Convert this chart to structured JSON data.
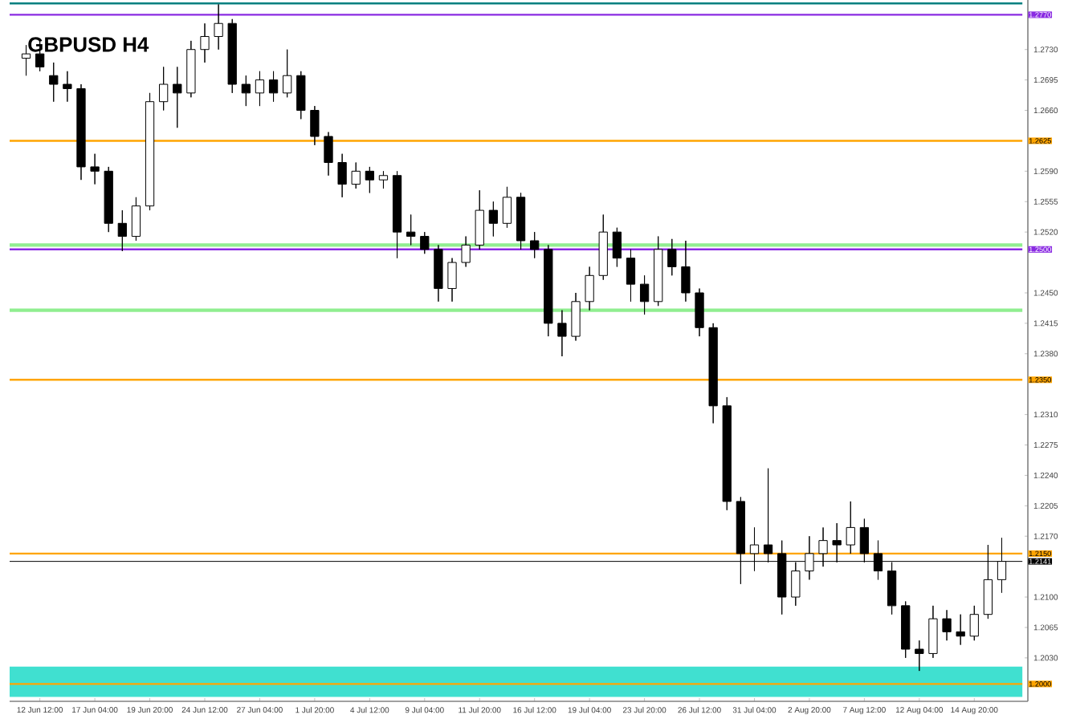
{
  "chart_data": {
    "type": "candlestick",
    "title": "GBPUSD H4",
    "color": "#000000",
    "categories": [
      null,
      "12 Jun 12:00",
      null,
      null,
      null,
      "17 Jun 04:00",
      null,
      null,
      null,
      "19 Jun 20:00",
      null,
      null,
      null,
      "24 Jun 12:00",
      null,
      null,
      null,
      "27 Jun 04:00",
      null,
      null,
      null,
      "1 Jul 20:00",
      null,
      null,
      null,
      "4 Jul 12:00",
      null,
      null,
      null,
      "9 Jul 04:00",
      null,
      null,
      null,
      "11 Jul 20:00",
      null,
      null,
      null,
      "16 Jul 12:00",
      null,
      null,
      null,
      "19 Jul 04:00",
      null,
      null,
      null,
      "23 Jul 20:00",
      null,
      null,
      null,
      "26 Jul 12:00",
      null,
      null,
      null,
      "31 Jul 04:00",
      null,
      null,
      null,
      "2 Aug 20:00",
      null,
      null,
      null,
      "7 Aug 12:00",
      null,
      null,
      null,
      "12 Aug 04:00",
      null,
      null,
      null,
      "14 Aug 20:00",
      null,
      null
    ],
    "ohlc": [
      [
        1.272,
        1.2735,
        1.27,
        1.2725
      ],
      [
        1.2725,
        1.274,
        1.2705,
        1.271
      ],
      [
        1.27,
        1.2715,
        1.267,
        1.269
      ],
      [
        1.269,
        1.2705,
        1.267,
        1.2685
      ],
      [
        1.2685,
        1.269,
        1.258,
        1.2595
      ],
      [
        1.2595,
        1.261,
        1.2575,
        1.259
      ],
      [
        1.259,
        1.2595,
        1.252,
        1.253
      ],
      [
        1.253,
        1.2545,
        1.2498,
        1.2515
      ],
      [
        1.2515,
        1.256,
        1.251,
        1.255
      ],
      [
        1.255,
        1.268,
        1.2545,
        1.267
      ],
      [
        1.267,
        1.271,
        1.266,
        1.269
      ],
      [
        1.269,
        1.271,
        1.264,
        1.268
      ],
      [
        1.268,
        1.274,
        1.2675,
        1.273
      ],
      [
        1.273,
        1.276,
        1.2715,
        1.2745
      ],
      [
        1.2745,
        1.2782,
        1.273,
        1.276
      ],
      [
        1.276,
        1.2765,
        1.268,
        1.269
      ],
      [
        1.269,
        1.27,
        1.2665,
        1.268
      ],
      [
        1.268,
        1.2705,
        1.2665,
        1.2695
      ],
      [
        1.2695,
        1.2705,
        1.267,
        1.268
      ],
      [
        1.268,
        1.273,
        1.2675,
        1.27
      ],
      [
        1.27,
        1.2705,
        1.265,
        1.266
      ],
      [
        1.266,
        1.2665,
        1.262,
        1.263
      ],
      [
        1.263,
        1.2635,
        1.2585,
        1.26
      ],
      [
        1.26,
        1.261,
        1.256,
        1.2575
      ],
      [
        1.2575,
        1.26,
        1.257,
        1.259
      ],
      [
        1.259,
        1.2595,
        1.2565,
        1.258
      ],
      [
        1.258,
        1.259,
        1.257,
        1.2585
      ],
      [
        1.2585,
        1.259,
        1.249,
        1.252
      ],
      [
        1.252,
        1.254,
        1.2505,
        1.2515
      ],
      [
        1.2515,
        1.252,
        1.2495,
        1.25
      ],
      [
        1.25,
        1.2505,
        1.244,
        1.2455
      ],
      [
        1.2455,
        1.249,
        1.244,
        1.2485
      ],
      [
        1.2485,
        1.2515,
        1.248,
        1.2505
      ],
      [
        1.2505,
        1.2568,
        1.25,
        1.2545
      ],
      [
        1.2545,
        1.2555,
        1.2515,
        1.253
      ],
      [
        1.253,
        1.2572,
        1.2525,
        1.256
      ],
      [
        1.256,
        1.2565,
        1.25,
        1.251
      ],
      [
        1.251,
        1.252,
        1.249,
        1.25
      ],
      [
        1.25,
        1.2505,
        1.24,
        1.2415
      ],
      [
        1.2415,
        1.243,
        1.2377,
        1.24
      ],
      [
        1.24,
        1.245,
        1.2395,
        1.244
      ],
      [
        1.244,
        1.248,
        1.243,
        1.247
      ],
      [
        1.247,
        1.254,
        1.2465,
        1.252
      ],
      [
        1.252,
        1.2525,
        1.248,
        1.249
      ],
      [
        1.249,
        1.25,
        1.244,
        1.246
      ],
      [
        1.246,
        1.247,
        1.2425,
        1.244
      ],
      [
        1.244,
        1.2515,
        1.2435,
        1.25
      ],
      [
        1.25,
        1.2512,
        1.247,
        1.248
      ],
      [
        1.248,
        1.251,
        1.244,
        1.245
      ],
      [
        1.245,
        1.2455,
        1.24,
        1.241
      ],
      [
        1.241,
        1.2415,
        1.23,
        1.232
      ],
      [
        1.232,
        1.233,
        1.22,
        1.221
      ],
      [
        1.221,
        1.2215,
        1.2115,
        1.215
      ],
      [
        1.215,
        1.218,
        1.213,
        1.216
      ],
      [
        1.216,
        1.2248,
        1.214,
        1.215
      ],
      [
        1.215,
        1.2165,
        1.208,
        1.21
      ],
      [
        1.21,
        1.214,
        1.209,
        1.213
      ],
      [
        1.213,
        1.217,
        1.212,
        1.215
      ],
      [
        1.215,
        1.218,
        1.2135,
        1.2165
      ],
      [
        1.2165,
        1.2185,
        1.214,
        1.216
      ],
      [
        1.216,
        1.221,
        1.215,
        1.218
      ],
      [
        1.218,
        1.219,
        1.214,
        1.215
      ],
      [
        1.215,
        1.2165,
        1.212,
        1.213
      ],
      [
        1.213,
        1.214,
        1.208,
        1.209
      ],
      [
        1.209,
        1.2095,
        1.203,
        1.204
      ],
      [
        1.204,
        1.205,
        1.2015,
        1.2035
      ],
      [
        1.2035,
        1.209,
        1.203,
        1.2075
      ],
      [
        1.2075,
        1.2085,
        1.205,
        1.206
      ],
      [
        1.206,
        1.208,
        1.2045,
        1.2055
      ],
      [
        1.2055,
        1.209,
        1.205,
        1.208
      ],
      [
        1.208,
        1.216,
        1.2075,
        1.212
      ],
      [
        1.212,
        1.2168,
        1.2105,
        1.2141
      ]
    ],
    "ylim": [
      1.198,
      1.2787
    ],
    "yticks": [
      {
        "value": 1.273,
        "label": "1.2730"
      },
      1.2695,
      {
        "value": 1.266,
        "label": "1.2660"
      },
      {
        "value": 1.259,
        "label": "1.2590"
      },
      1.2555,
      {
        "value": 1.252,
        "label": "1.2520"
      },
      {
        "value": 1.245,
        "label": "1.2450"
      },
      1.2415,
      {
        "value": 1.238,
        "label": "1.2380"
      },
      {
        "value": 1.231,
        "label": "1.2310"
      },
      1.2275,
      {
        "value": 1.224,
        "label": "1.2240"
      },
      1.2205,
      {
        "value": 1.217,
        "label": "1.2170"
      },
      {
        "value": 1.21,
        "label": "1.2100"
      },
      1.2065,
      {
        "value": 1.203,
        "label": "1.2030"
      }
    ],
    "ref_lines": [
      {
        "axis": "y",
        "value": 1.2783,
        "color": "#008080"
      },
      {
        "axis": "y",
        "value": 1.277,
        "label": "1.2770",
        "color": "#8a2be2"
      },
      {
        "axis": "y",
        "value": 1.2625,
        "label": "1.2625",
        "color": "#ffa500"
      },
      {
        "axis": "y",
        "value": 1.2505,
        "color": "#90ee90"
      },
      {
        "axis": "y",
        "value": 1.25,
        "label": "1.2500",
        "color": "#8a2be2"
      },
      {
        "axis": "y",
        "value": 1.243,
        "color": "#90ee90"
      },
      {
        "axis": "y",
        "value": 1.235,
        "label": "1.2350",
        "color": "#ffa500"
      },
      {
        "axis": "y",
        "value": 1.215,
        "label": "1.2150",
        "color": "#ffa500"
      },
      {
        "axis": "y",
        "value": 1.2141,
        "label": "1.2141",
        "color": "#000000"
      },
      {
        "axis": "y",
        "value": 1.2,
        "label": "1.2000",
        "color": "#ffa500"
      }
    ],
    "bands": [
      {
        "axis": "y",
        "from": 1.1985,
        "to": 1.202,
        "color": "#40e0d0"
      }
    ]
  }
}
